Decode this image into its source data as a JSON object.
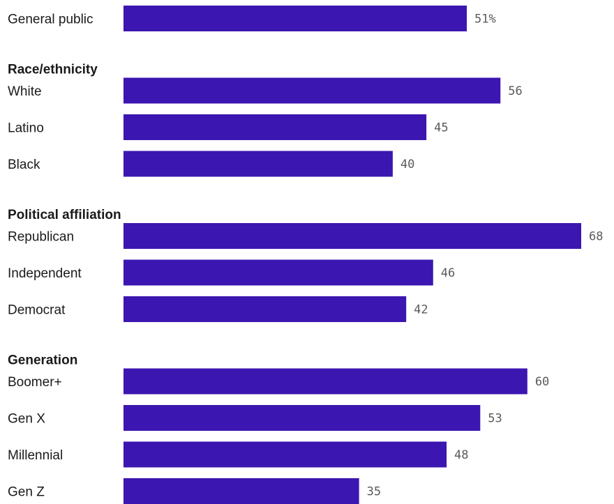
{
  "chart_data": {
    "type": "bar",
    "orientation": "horizontal",
    "bar_color": "#3c16b0",
    "xlim": [
      0,
      68
    ],
    "groups": [
      {
        "title": "",
        "items": [
          {
            "label": "General public",
            "value": 51,
            "display": "51%"
          }
        ]
      },
      {
        "title": "Race/ethnicity",
        "items": [
          {
            "label": "White",
            "value": 56,
            "display": "56"
          },
          {
            "label": "Latino",
            "value": 45,
            "display": "45"
          },
          {
            "label": "Black",
            "value": 40,
            "display": "40"
          }
        ]
      },
      {
        "title": "Political affiliation",
        "items": [
          {
            "label": "Republican",
            "value": 68,
            "display": "68"
          },
          {
            "label": "Independent",
            "value": 46,
            "display": "46"
          },
          {
            "label": "Democrat",
            "value": 42,
            "display": "42"
          }
        ]
      },
      {
        "title": "Generation",
        "items": [
          {
            "label": "Boomer+",
            "value": 60,
            "display": "60"
          },
          {
            "label": "Gen X",
            "value": 53,
            "display": "53"
          },
          {
            "label": "Millennial",
            "value": 48,
            "display": "48"
          },
          {
            "label": "Gen Z",
            "value": 35,
            "display": "35"
          }
        ]
      }
    ]
  }
}
